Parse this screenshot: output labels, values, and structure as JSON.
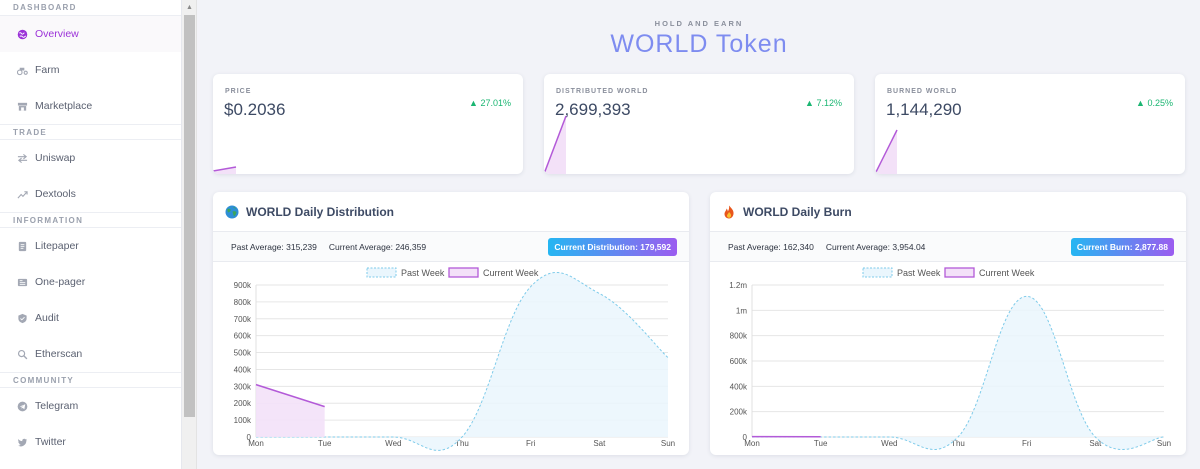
{
  "sidebar": {
    "sections": [
      {
        "title": "DASHBOARD",
        "items": [
          {
            "label": "Overview",
            "icon": "globe-icon"
          },
          {
            "label": "Farm",
            "icon": "tractor-icon"
          },
          {
            "label": "Marketplace",
            "icon": "store-icon"
          }
        ]
      },
      {
        "title": "TRADE",
        "items": [
          {
            "label": "Uniswap",
            "icon": "exchange-icon"
          },
          {
            "label": "Dextools",
            "icon": "trend-icon"
          }
        ]
      },
      {
        "title": "INFORMATION",
        "items": [
          {
            "label": "Litepaper",
            "icon": "book-icon"
          },
          {
            "label": "One-pager",
            "icon": "newspaper-icon"
          },
          {
            "label": "Audit",
            "icon": "shield-icon"
          },
          {
            "label": "Etherscan",
            "icon": "search-icon"
          }
        ]
      },
      {
        "title": "COMMUNITY",
        "items": [
          {
            "label": "Telegram",
            "icon": "telegram-icon"
          },
          {
            "label": "Twitter",
            "icon": "twitter-icon"
          }
        ]
      }
    ],
    "active_item": "Overview"
  },
  "header": {
    "subtitle": "HOLD AND EARN",
    "title": "WORLD Token"
  },
  "stats": [
    {
      "label": "PRICE",
      "value": "$0.2036",
      "change": "27.01%"
    },
    {
      "label": "DISTRIBUTED WORLD",
      "value": "2,699,393",
      "change": "7.12%"
    },
    {
      "label": "BURNED WORLD",
      "value": "1,144,290",
      "change": "0.25%"
    }
  ],
  "distribution": {
    "title": "WORLD Daily Distribution",
    "icon": "globe-emoji-icon",
    "past_average": "Past Average: 315,239",
    "current_average": "Current Average: 246,359",
    "badge": "Current Distribution: 179,592"
  },
  "burn": {
    "title": "WORLD Daily Burn",
    "icon": "fire-emoji-icon",
    "past_average": "Past Average: 162,340",
    "current_average": "Current Average: 3,954.04",
    "badge": "Current Burn: 2,877.88"
  },
  "colors": {
    "accent": "#9b32d8",
    "positive": "#1bb672",
    "past_fill": "#eaf6fd",
    "past_line": "#7ecbea",
    "current_fill": "#f3e1f8",
    "current_line": "#b35ad8"
  },
  "chart_data": [
    {
      "type": "area",
      "categories": [
        "Mon",
        "Tue",
        "Wed",
        "Thu",
        "Fri",
        "Sat",
        "Sun"
      ],
      "ylim": [
        0,
        900000
      ],
      "yticks": [
        0,
        100000,
        200000,
        300000,
        400000,
        500000,
        600000,
        700000,
        800000,
        900000
      ],
      "ytick_labels": [
        "0",
        "100k",
        "200k",
        "300k",
        "400k",
        "500k",
        "600k",
        "700k",
        "800k",
        "900k"
      ],
      "legend": "top-center",
      "grid": true,
      "series": [
        {
          "name": "Past Week",
          "values": [
            0,
            0,
            0,
            0,
            890000,
            850000,
            470000
          ],
          "style": "dashed"
        },
        {
          "name": "Current Week",
          "values": [
            310000,
            180000,
            null,
            null,
            null,
            null,
            null
          ],
          "style": "solid"
        }
      ]
    },
    {
      "type": "area",
      "categories": [
        "Mon",
        "Tue",
        "Wed",
        "Thu",
        "Fri",
        "Sat",
        "Sun"
      ],
      "ylim": [
        0,
        1200000
      ],
      "yticks": [
        0,
        200000,
        400000,
        600000,
        800000,
        1000000,
        1200000
      ],
      "ytick_labels": [
        "0",
        "200k",
        "400k",
        "600k",
        "800k",
        "1m",
        "1.2m"
      ],
      "legend": "top-center",
      "grid": true,
      "series": [
        {
          "name": "Past Week",
          "values": [
            0,
            0,
            0,
            0,
            1110000,
            0,
            0
          ],
          "style": "dashed"
        },
        {
          "name": "Current Week",
          "values": [
            3000,
            2000,
            null,
            null,
            null,
            null,
            null
          ],
          "style": "solid"
        }
      ]
    }
  ]
}
